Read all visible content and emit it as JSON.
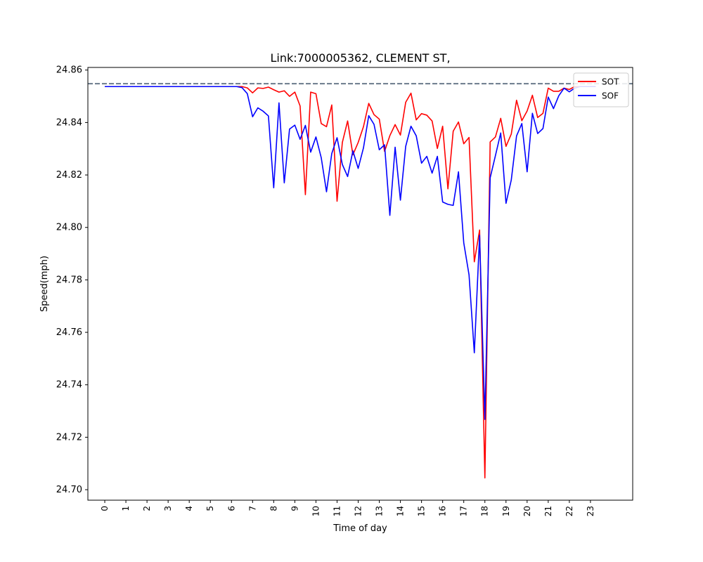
{
  "chart_data": {
    "type": "line",
    "title": "Link:7000005362, CLEMENT ST,",
    "xlabel": "Time of day",
    "ylabel": "Speed(mph)",
    "xlim": [
      -0.8,
      25.0
    ],
    "ylim": [
      24.696,
      24.861
    ],
    "x_ticks": [
      "0",
      "1",
      "2",
      "3",
      "4",
      "5",
      "6",
      "7",
      "8",
      "9",
      "10",
      "11",
      "12",
      "13",
      "14",
      "15",
      "16",
      "17",
      "18",
      "19",
      "20",
      "21",
      "22",
      "23"
    ],
    "y_ticks": [
      "24.70",
      "24.72",
      "24.74",
      "24.76",
      "24.78",
      "24.80",
      "24.82",
      "24.84",
      "24.86"
    ],
    "reference_line": {
      "y": 24.8548,
      "style": "dashed",
      "color": "#6b7b8c"
    },
    "legend": {
      "placement": "upper-right"
    },
    "series": [
      {
        "name": "SOT",
        "color": "#ff0000",
        "points": [
          [
            0,
            24.8537
          ],
          [
            0.25,
            24.8537
          ],
          [
            0.5,
            24.8537
          ],
          [
            0.75,
            24.8537
          ],
          [
            1,
            24.8537
          ],
          [
            1.25,
            24.8537
          ],
          [
            1.5,
            24.8537
          ],
          [
            1.75,
            24.8537
          ],
          [
            2,
            24.8537
          ],
          [
            2.25,
            24.8537
          ],
          [
            2.5,
            24.8537
          ],
          [
            2.75,
            24.8537
          ],
          [
            3,
            24.8537
          ],
          [
            3.25,
            24.8537
          ],
          [
            3.5,
            24.8537
          ],
          [
            3.75,
            24.8537
          ],
          [
            4,
            24.8537
          ],
          [
            4.25,
            24.8537
          ],
          [
            4.5,
            24.8537
          ],
          [
            4.75,
            24.8537
          ],
          [
            5,
            24.8537
          ],
          [
            5.25,
            24.8537
          ],
          [
            5.5,
            24.8537
          ],
          [
            5.75,
            24.8537
          ],
          [
            6,
            24.8537
          ],
          [
            6.25,
            24.8537
          ],
          [
            6.5,
            24.8537
          ],
          [
            6.75,
            24.8532
          ],
          [
            7,
            24.8513
          ],
          [
            7.25,
            24.8532
          ],
          [
            7.5,
            24.853
          ],
          [
            7.75,
            24.8535
          ],
          [
            8,
            24.8525
          ],
          [
            8.25,
            24.8516
          ],
          [
            8.5,
            24.8521
          ],
          [
            8.75,
            24.85
          ],
          [
            9,
            24.8516
          ],
          [
            9.25,
            24.8463
          ],
          [
            9.5,
            24.8125
          ],
          [
            9.75,
            24.8516
          ],
          [
            10,
            24.851
          ],
          [
            10.25,
            24.8396
          ],
          [
            10.5,
            24.8384
          ],
          [
            10.75,
            24.8467
          ],
          [
            11,
            24.81
          ],
          [
            11.25,
            24.8324
          ],
          [
            11.5,
            24.8406
          ],
          [
            11.75,
            24.8277
          ],
          [
            12,
            24.8324
          ],
          [
            12.25,
            24.8384
          ],
          [
            12.5,
            24.8473
          ],
          [
            12.75,
            24.843
          ],
          [
            13,
            24.8413
          ],
          [
            13.25,
            24.829
          ],
          [
            13.5,
            24.835
          ],
          [
            13.75,
            24.8392
          ],
          [
            14,
            24.8352
          ],
          [
            14.25,
            24.8477
          ],
          [
            14.5,
            24.8512
          ],
          [
            14.75,
            24.841
          ],
          [
            15,
            24.8434
          ],
          [
            15.25,
            24.8428
          ],
          [
            15.5,
            24.8406
          ],
          [
            15.75,
            24.8301
          ],
          [
            16,
            24.8386
          ],
          [
            16.25,
            24.8147
          ],
          [
            16.5,
            24.8367
          ],
          [
            16.75,
            24.8402
          ],
          [
            17,
            24.8319
          ],
          [
            17.25,
            24.8343
          ],
          [
            17.5,
            24.7869
          ],
          [
            17.75,
            24.799
          ],
          [
            18,
            24.7045
          ],
          [
            18.25,
            24.8326
          ],
          [
            18.5,
            24.8345
          ],
          [
            18.75,
            24.8416
          ],
          [
            19,
            24.8309
          ],
          [
            19.25,
            24.8356
          ],
          [
            19.5,
            24.8485
          ],
          [
            19.75,
            24.8407
          ],
          [
            20,
            24.8444
          ],
          [
            20.25,
            24.8504
          ],
          [
            20.5,
            24.8419
          ],
          [
            20.75,
            24.8435
          ],
          [
            21,
            24.8531
          ],
          [
            21.25,
            24.8519
          ],
          [
            21.5,
            24.8519
          ],
          [
            21.75,
            24.8531
          ],
          [
            22,
            24.8526
          ],
          [
            22.25,
            24.8537
          ],
          [
            22.5,
            24.8537
          ],
          [
            22.75,
            24.8537
          ],
          [
            23,
            24.8537
          ],
          [
            23.25,
            24.8537
          ]
        ]
      },
      {
        "name": "SOF",
        "color": "#0000ff",
        "points": [
          [
            0,
            24.8537
          ],
          [
            0.25,
            24.8537
          ],
          [
            0.5,
            24.8537
          ],
          [
            0.75,
            24.8537
          ],
          [
            1,
            24.8537
          ],
          [
            1.25,
            24.8537
          ],
          [
            1.5,
            24.8537
          ],
          [
            1.75,
            24.8537
          ],
          [
            2,
            24.8537
          ],
          [
            2.25,
            24.8537
          ],
          [
            2.5,
            24.8537
          ],
          [
            2.75,
            24.8537
          ],
          [
            3,
            24.8537
          ],
          [
            3.25,
            24.8537
          ],
          [
            3.5,
            24.8537
          ],
          [
            3.75,
            24.8537
          ],
          [
            4,
            24.8537
          ],
          [
            4.25,
            24.8537
          ],
          [
            4.5,
            24.8537
          ],
          [
            4.75,
            24.8537
          ],
          [
            5,
            24.8537
          ],
          [
            5.25,
            24.8537
          ],
          [
            5.5,
            24.8537
          ],
          [
            5.75,
            24.8537
          ],
          [
            6,
            24.8537
          ],
          [
            6.25,
            24.8537
          ],
          [
            6.5,
            24.8533
          ],
          [
            6.75,
            24.851
          ],
          [
            7,
            24.8422
          ],
          [
            7.25,
            24.8456
          ],
          [
            7.5,
            24.8443
          ],
          [
            7.75,
            24.8425
          ],
          [
            8,
            24.8151
          ],
          [
            8.25,
            24.8475
          ],
          [
            8.5,
            24.817
          ],
          [
            8.75,
            24.8375
          ],
          [
            9,
            24.839
          ],
          [
            9.25,
            24.8336
          ],
          [
            9.5,
            24.8389
          ],
          [
            9.75,
            24.8287
          ],
          [
            10,
            24.8345
          ],
          [
            10.25,
            24.8266
          ],
          [
            10.5,
            24.8136
          ],
          [
            10.75,
            24.8282
          ],
          [
            11,
            24.8342
          ],
          [
            11.25,
            24.824
          ],
          [
            11.5,
            24.8194
          ],
          [
            11.75,
            24.8292
          ],
          [
            12,
            24.8225
          ],
          [
            12.25,
            24.8303
          ],
          [
            12.5,
            24.8426
          ],
          [
            12.75,
            24.8393
          ],
          [
            13,
            24.8296
          ],
          [
            13.25,
            24.8315
          ],
          [
            13.5,
            24.8046
          ],
          [
            13.75,
            24.8306
          ],
          [
            14,
            24.8104
          ],
          [
            14.25,
            24.8309
          ],
          [
            14.5,
            24.8386
          ],
          [
            14.75,
            24.8349
          ],
          [
            15,
            24.8245
          ],
          [
            15.25,
            24.8271
          ],
          [
            15.5,
            24.8207
          ],
          [
            15.75,
            24.8271
          ],
          [
            16,
            24.8097
          ],
          [
            16.25,
            24.8088
          ],
          [
            16.5,
            24.8084
          ],
          [
            16.75,
            24.8212
          ],
          [
            17,
            24.7941
          ],
          [
            17.25,
            24.7819
          ],
          [
            17.5,
            24.7522
          ],
          [
            17.75,
            24.797
          ],
          [
            18,
            24.7268
          ],
          [
            18.25,
            24.8189
          ],
          [
            18.5,
            24.8274
          ],
          [
            18.75,
            24.836
          ],
          [
            19,
            24.8092
          ],
          [
            19.25,
            24.8181
          ],
          [
            19.5,
            24.8349
          ],
          [
            19.75,
            24.8396
          ],
          [
            20,
            24.8212
          ],
          [
            20.25,
            24.8435
          ],
          [
            20.5,
            24.8358
          ],
          [
            20.75,
            24.8377
          ],
          [
            21,
            24.8497
          ],
          [
            21.25,
            24.8453
          ],
          [
            21.5,
            24.8502
          ],
          [
            21.75,
            24.8531
          ],
          [
            22,
            24.8517
          ],
          [
            22.25,
            24.8531
          ],
          [
            22.5,
            24.8537
          ],
          [
            22.75,
            24.8537
          ],
          [
            23,
            24.8537
          ],
          [
            23.25,
            24.8537
          ]
        ]
      }
    ]
  }
}
